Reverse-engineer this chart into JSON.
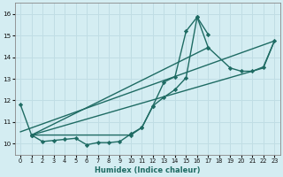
{
  "xlabel": "Humidex (Indice chaleur)",
  "bg_color": "#d4edf2",
  "grid_color": "#c0dde4",
  "line_color": "#1e6b63",
  "xmin": -0.5,
  "xmax": 23.5,
  "ymin": 9.5,
  "ymax": 16.5,
  "yticks": [
    10,
    11,
    12,
    13,
    14,
    15,
    16
  ],
  "xticks": [
    0,
    1,
    2,
    3,
    4,
    5,
    6,
    7,
    8,
    9,
    10,
    11,
    12,
    13,
    14,
    15,
    16,
    17,
    18,
    19,
    20,
    21,
    22,
    23
  ],
  "line1_x": [
    0,
    1,
    2,
    3,
    4,
    5,
    6,
    7,
    8,
    9,
    10,
    11,
    12,
    13,
    14,
    15,
    16,
    17
  ],
  "line1_y": [
    11.8,
    10.4,
    10.1,
    10.15,
    10.2,
    10.25,
    9.95,
    10.05,
    10.05,
    10.1,
    10.45,
    10.75,
    11.75,
    12.85,
    13.1,
    15.2,
    15.85,
    15.05
  ],
  "line2_x": [
    1,
    10,
    11,
    12,
    13,
    14,
    15,
    16,
    17
  ],
  "line2_y": [
    10.4,
    10.4,
    10.75,
    11.75,
    12.15,
    12.5,
    13.05,
    15.85,
    14.45
  ],
  "line3_x": [
    1,
    17,
    19,
    20,
    21,
    22,
    23
  ],
  "line3_y": [
    10.4,
    14.45,
    13.5,
    13.35,
    13.35,
    13.55,
    14.75
  ],
  "line4_x": [
    0,
    23
  ],
  "line4_y": [
    10.55,
    14.75
  ],
  "line5_x": [
    1,
    22,
    23
  ],
  "line5_y": [
    10.4,
    13.5,
    14.75
  ]
}
